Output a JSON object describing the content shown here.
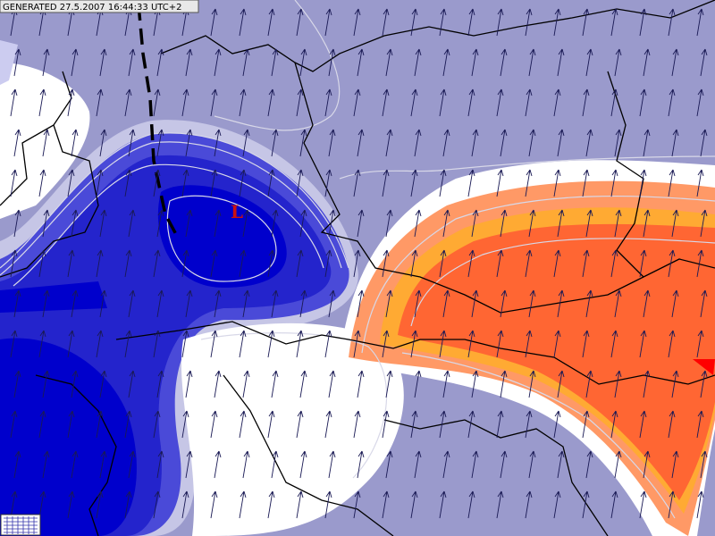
{
  "header": {
    "generated": "GENERATED 27.5.2007 16:44:33 UTC+2"
  },
  "labels": {
    "low": "L"
  }
}
